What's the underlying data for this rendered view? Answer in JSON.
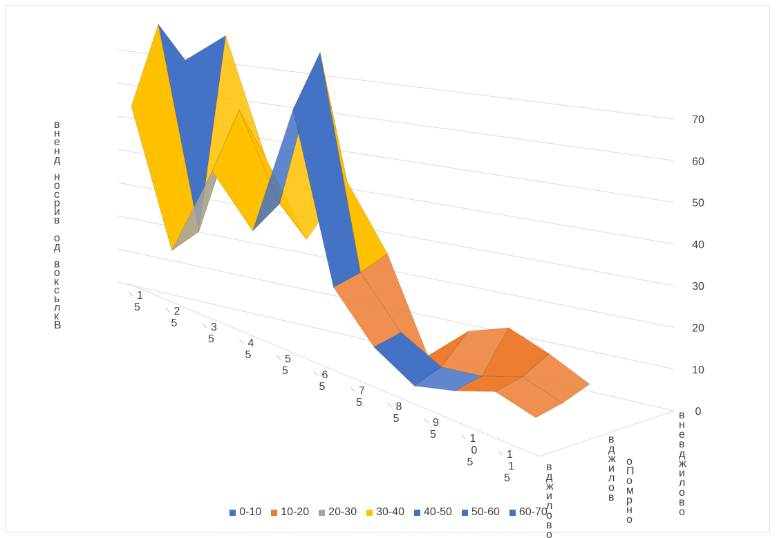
{
  "chart_data": {
    "type": "surface",
    "title": "",
    "z_axis": {
      "ticks": [
        "0",
        "10",
        "20",
        "30",
        "40",
        "50",
        "60",
        "70"
      ],
      "range": [
        0,
        70
      ]
    },
    "x_ticks": [
      "15",
      "25",
      "35",
      "45",
      "55",
      "65",
      "75",
      "85",
      "95",
      "105",
      "115"
    ],
    "y_ticks": [
      "вджилово",
      "вджилово Помрно",
      "вне вджилово"
    ],
    "vertical_label": "Вкльсков до вирсон дненв",
    "series_rows": [
      {
        "name": "row-back",
        "values": [
          42,
          12,
          35,
          25,
          58,
          20,
          10,
          5,
          8,
          12,
          10
        ]
      },
      {
        "name": "row-mid",
        "values": [
          60,
          15,
          48,
          30,
          70,
          22,
          12,
          8,
          10,
          14,
          12
        ]
      },
      {
        "name": "row-front",
        "values": [
          50,
          60,
          35,
          20,
          38,
          25,
          5,
          15,
          20,
          18,
          15
        ]
      }
    ],
    "legend": [
      {
        "label": "0-10",
        "color": "#4472C4"
      },
      {
        "label": "10-20",
        "color": "#ED7D31"
      },
      {
        "label": "20-30",
        "color": "#A5A5A5"
      },
      {
        "label": "30-40",
        "color": "#FFC000"
      },
      {
        "label": "40-50",
        "color": "#4472C4"
      },
      {
        "label": "50-60",
        "color": "#4472C4"
      },
      {
        "label": "60-70",
        "color": "#4472C4"
      }
    ]
  }
}
